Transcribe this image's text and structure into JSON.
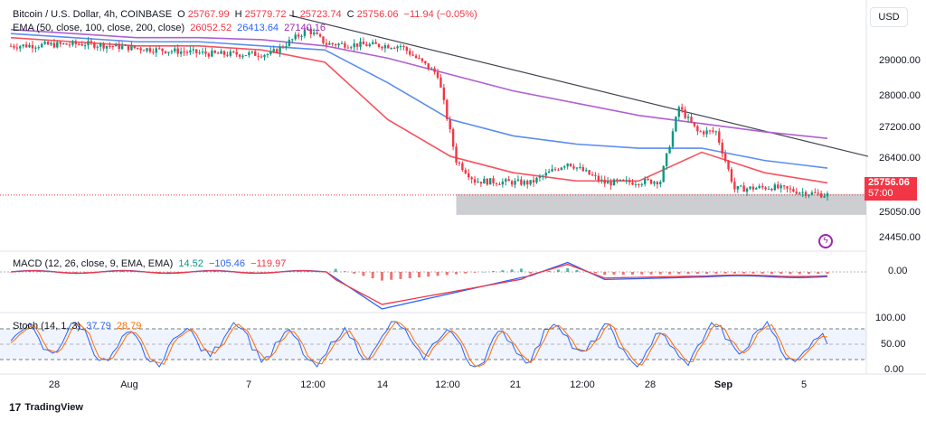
{
  "header": {
    "symbol": "Bitcoin / U.S. Dollar, 4h, COINBASE",
    "o_label": "O",
    "o_value": "25767.99",
    "h_label": "H",
    "h_value": "25779.72",
    "l_label": "L",
    "l_value": "25723.74",
    "c_label": "C",
    "c_value": "25756.06",
    "change": "−11.94 (−0.05%)"
  },
  "ema_legend": {
    "label": "EMA (50, close, 100, close, 200, close)",
    "ema50": "26052.52",
    "ema100": "26413.64",
    "ema200": "27140.16"
  },
  "macd_legend": {
    "label": "MACD (12, 26, close, 9, EMA, EMA)",
    "hist": "14.52",
    "macd": "−105.46",
    "signal": "−119.97"
  },
  "stoch_legend": {
    "label": "Stoch (14, 1, 3)",
    "k": "37.79",
    "d": "28.79"
  },
  "currency_button": "USD",
  "price_axis": [
    "29000.00",
    "28000.00",
    "27200.00",
    "26400.00",
    "25050.00",
    "24450.00"
  ],
  "current_price": {
    "value": "25756.06",
    "countdown": "57:00"
  },
  "macd_axis": [
    "0.00"
  ],
  "stoch_axis": [
    "100.00",
    "50.00",
    "0.00"
  ],
  "time_axis": [
    "28",
    "Aug",
    "7",
    "12:00",
    "14",
    "12:00",
    "21",
    "12:00",
    "28",
    "Sep",
    "5"
  ],
  "brand": "TradingView",
  "colors": {
    "up": "#089981",
    "down": "#f23645",
    "ema50": "#f7525f",
    "ema100": "#5b8def",
    "ema200": "#b05fd3",
    "trendline": "#434651",
    "support_zone": "#c8c9cc"
  },
  "chart_data": {
    "type": "candlestick",
    "interval": "4h",
    "ylim": [
      24450,
      30300
    ],
    "price_path": [
      {
        "x": "Jul 24",
        "y": 29400
      },
      {
        "x": "Jul 28",
        "y": 29450
      },
      {
        "x": "Aug 1",
        "y": 29300
      },
      {
        "x": "Aug 4",
        "y": 29200
      },
      {
        "x": "Aug 7",
        "y": 29200
      },
      {
        "x": "Aug 9",
        "y": 29800
      },
      {
        "x": "Aug 10",
        "y": 29450
      },
      {
        "x": "Aug 14",
        "y": 29400
      },
      {
        "x": "Aug 16",
        "y": 28700
      },
      {
        "x": "Aug 17",
        "y": 26600
      },
      {
        "x": "Aug 18",
        "y": 26100
      },
      {
        "x": "Aug 21",
        "y": 26050
      },
      {
        "x": "Aug 23",
        "y": 26550
      },
      {
        "x": "Aug 25",
        "y": 26050
      },
      {
        "x": "Aug 28",
        "y": 26100
      },
      {
        "x": "Aug 29",
        "y": 27900
      },
      {
        "x": "Aug 30",
        "y": 27300
      },
      {
        "x": "Aug 31",
        "y": 27300
      },
      {
        "x": "Sep 1",
        "y": 25900
      },
      {
        "x": "Sep 3",
        "y": 25950
      },
      {
        "x": "Sep 5",
        "y": 25800
      },
      {
        "x": "Sep 6",
        "y": 25756
      }
    ],
    "series": [
      {
        "name": "EMA 50",
        "values": [
          29600,
          29500,
          29400,
          29400,
          29300,
          29000,
          27600,
          26700,
          26300,
          26100,
          26100,
          26800,
          26300,
          26052
        ]
      },
      {
        "name": "EMA 100",
        "values": [
          29700,
          29600,
          29500,
          29500,
          29400,
          29300,
          28500,
          27600,
          27200,
          27000,
          26900,
          26900,
          26600,
          26414
        ]
      },
      {
        "name": "EMA 200",
        "values": [
          29800,
          29700,
          29600,
          29600,
          29550,
          29400,
          29100,
          28700,
          28300,
          28000,
          27700,
          27500,
          27300,
          27140
        ]
      }
    ]
  }
}
